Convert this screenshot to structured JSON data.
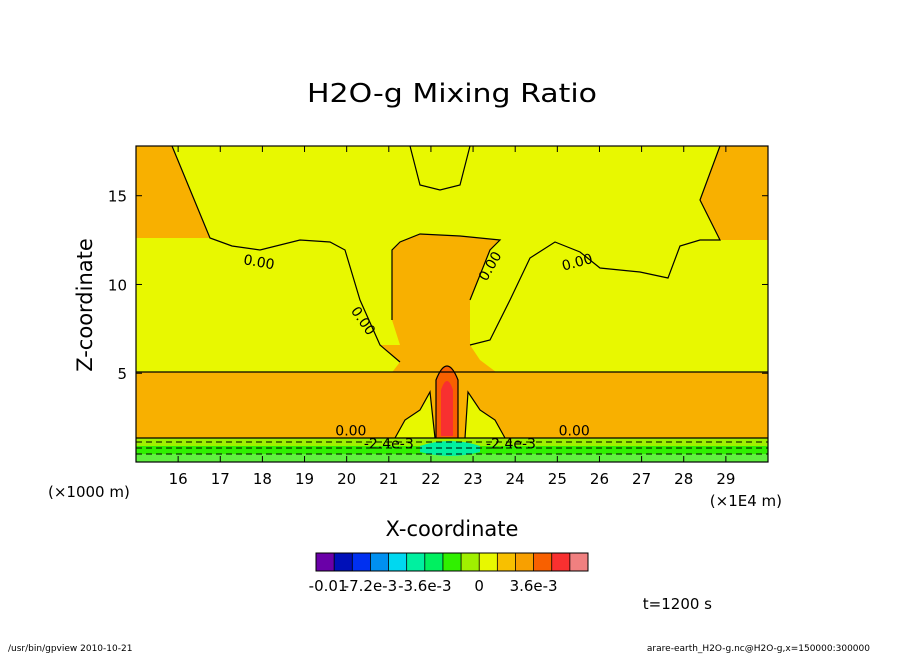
{
  "chart_data": {
    "type": "contour",
    "title": "H2O-g Mixing Ratio",
    "xlabel": "X-coordinate",
    "ylabel": "Z-coordinate",
    "x_unit_left": "(×1000 m)",
    "x_unit_right": "(×1E4 m)",
    "xlim": [
      15.0,
      30.0
    ],
    "ylim": [
      0,
      17.8
    ],
    "x_ticks": [
      "16",
      "17",
      "18",
      "19",
      "20",
      "21",
      "22",
      "23",
      "24",
      "25",
      "26",
      "27",
      "28",
      "29"
    ],
    "y_ticks": [
      "5",
      "10",
      "15"
    ],
    "contour_labels": [
      {
        "text": "0.00",
        "x": 17.9,
        "y": 11.0,
        "rotate": 10
      },
      {
        "text": "0.00",
        "x": 20.3,
        "y": 7.8,
        "rotate": 55
      },
      {
        "text": "0.00",
        "x": 23.5,
        "y": 10.9,
        "rotate": -60
      },
      {
        "text": "0.00",
        "x": 25.5,
        "y": 11.0,
        "rotate": -15
      },
      {
        "text": "0.00",
        "x": 20.1,
        "y": 1.5,
        "rotate": 0
      },
      {
        "text": "0.00",
        "x": 25.4,
        "y": 1.5,
        "rotate": 0
      },
      {
        "text": "-2.4e-3",
        "x": 21.0,
        "y": 0.75,
        "rotate": 0
      },
      {
        "text": "-2.4e-3",
        "x": 23.9,
        "y": 0.75,
        "rotate": 0
      }
    ],
    "colorbar": {
      "colors": [
        "#6a00a8",
        "#0010b8",
        "#0030f0",
        "#0090f0",
        "#00d8f0",
        "#00f0a0",
        "#00f060",
        "#30f000",
        "#a0f000",
        "#e8f800",
        "#f8c000",
        "#f8a000",
        "#f86000",
        "#f83030",
        "#f08080"
      ],
      "tick_labels": [
        "-0.01",
        "-7.2e-3",
        "-3.6e-3",
        "0",
        "3.6e-3"
      ],
      "tick_values": [
        -0.01,
        -0.0072,
        -0.0036,
        0,
        0.0036
      ]
    },
    "time_label": "t=1200 s",
    "footer_left": "/usr/bin/gpview   2010-10-21",
    "footer_right": "arare-earth_H2O-g.nc@H2O-g,x=150000:300000"
  }
}
